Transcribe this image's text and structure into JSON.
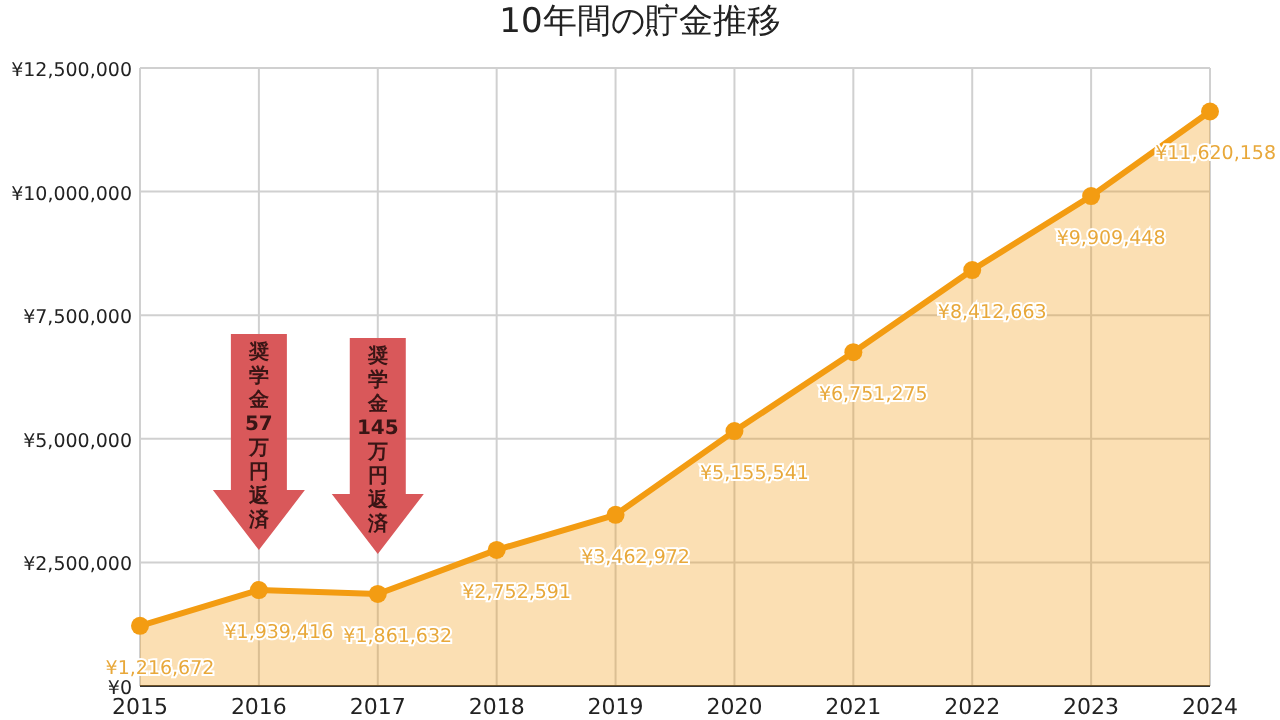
{
  "chart_data": {
    "type": "area",
    "title": "10年間の貯金推移",
    "x": [
      2015,
      2016,
      2017,
      2018,
      2019,
      2020,
      2021,
      2022,
      2023,
      2024
    ],
    "xlim": [
      2015,
      2024
    ],
    "xticks": [
      2015,
      2016,
      2017,
      2018,
      2019,
      2020,
      2021,
      2022,
      2023,
      2024
    ],
    "ylim": [
      0,
      12500000
    ],
    "yticks": [
      {
        "value": 0,
        "label": "¥0"
      },
      {
        "value": 2500000,
        "label": "¥2,500,000"
      },
      {
        "value": 5000000,
        "label": "¥5,000,000"
      },
      {
        "value": 7500000,
        "label": "¥7,500,000"
      },
      {
        "value": 10000000,
        "label": "¥10,000,000"
      },
      {
        "value": 12500000,
        "label": "¥12,500,000"
      }
    ],
    "series": [
      {
        "color": "#f39c12",
        "values": [
          1216672,
          1939416,
          1861632,
          2752591,
          3462972,
          5155541,
          6751275,
          8412663,
          9909448,
          11620158
        ],
        "value_labels": [
          "¥1,216,672",
          "¥1,939,416",
          "¥1,861,632",
          "¥2,752,591",
          "¥3,462,972",
          "¥5,155,541",
          "¥6,751,275",
          "¥8,412,663",
          "¥9,909,448",
          "¥11,620,158"
        ]
      }
    ],
    "marker": "circle",
    "grid": true,
    "annotations": [
      {
        "text": "奨学金57万円返済",
        "x": 2016,
        "y": 1939416
      },
      {
        "text": "奨学金145万円返済",
        "x": 2017,
        "y": 1861632
      }
    ]
  }
}
